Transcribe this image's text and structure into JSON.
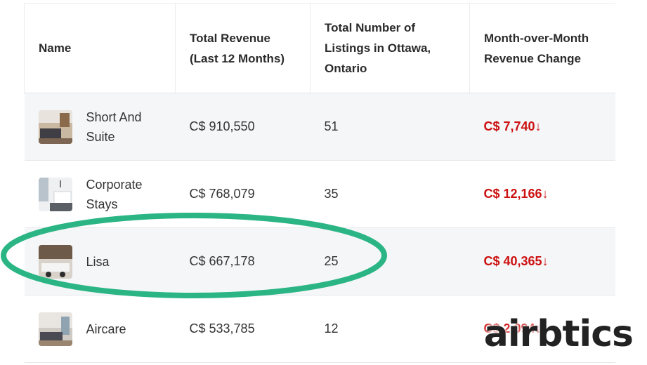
{
  "table": {
    "headers": {
      "name": "Name",
      "revenue": "Total Revenue (Last 12 Months)",
      "listings": "Total Number of Listings in Ottawa, Ontario",
      "change": "Month-over-Month Revenue Change"
    },
    "rows": [
      {
        "name": "Short And Suite",
        "revenue": "C$ 910,550",
        "listings": "51",
        "change": "C$ 7,740",
        "arrow": "↓"
      },
      {
        "name": "Corporate Stays",
        "revenue": "C$ 768,079",
        "listings": "35",
        "change": "C$ 12,166",
        "arrow": "↓"
      },
      {
        "name": "Lisa",
        "revenue": "C$ 667,178",
        "listings": "25",
        "change": "C$ 40,365",
        "arrow": "↓"
      },
      {
        "name": "Aircare",
        "revenue": "C$ 533,785",
        "listings": "12",
        "change": "C$ 2,094",
        "arrow": "↓"
      }
    ]
  },
  "highlight": {
    "color": "#2bb585"
  },
  "logo": {
    "text": "airbtics"
  },
  "colors": {
    "negative": "#cc1111",
    "stripe": "#f5f6f8"
  }
}
